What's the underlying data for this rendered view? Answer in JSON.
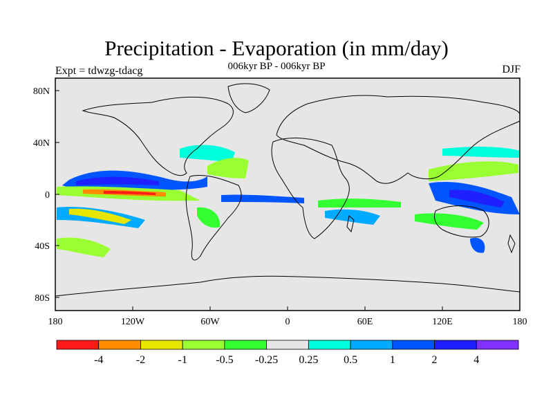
{
  "title": "Precipitation - Evaporation (in mm/day)",
  "subtitle": "006kyr BP - 006kyr BP",
  "left_string": "Expt = tdwzg-tdacg",
  "right_string": "DJF",
  "map": {
    "ocean_color": "#e6e6e6",
    "coast_color": "#000000",
    "lat_ticks": [
      "80N",
      "40N",
      "0",
      "40S",
      "80S"
    ],
    "lon_ticks": [
      "180",
      "120W",
      "60W",
      "0",
      "60E",
      "120E",
      "180"
    ]
  },
  "colorbar": {
    "colors": [
      "#ff1a1a",
      "#ff8c00",
      "#e6e600",
      "#99ff33",
      "#33ff33",
      "#e6e6e6",
      "#00ffdd",
      "#00aaff",
      "#0055ff",
      "#2020ff",
      "#8030ff"
    ],
    "labels": [
      "-4",
      "-2",
      "-1",
      "-0.5",
      "-0.25",
      "0.25",
      "0.5",
      "1",
      "2",
      "4"
    ]
  }
}
